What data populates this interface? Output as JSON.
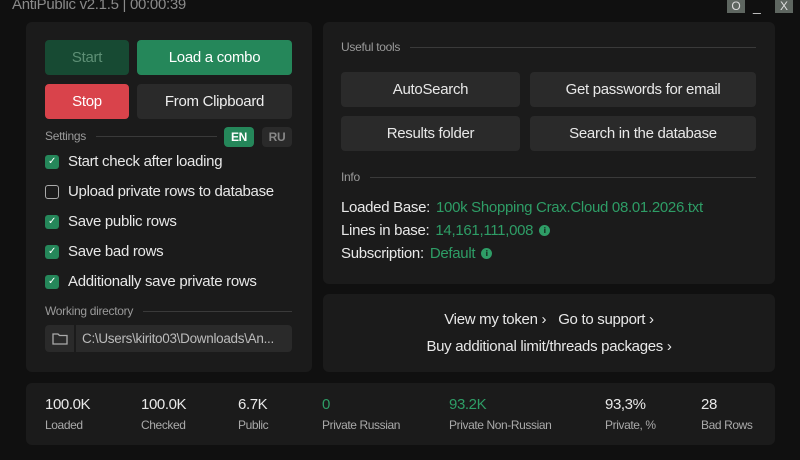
{
  "window": {
    "title": "AntiPublic v2.1.5 | 00:00:39",
    "camera": "O",
    "minimize": "_",
    "close": "X"
  },
  "left": {
    "start": "Start",
    "load_combo": "Load a combo",
    "stop": "Stop",
    "from_clipboard": "From Clipboard",
    "settings_label": "Settings",
    "lang_en": "EN",
    "lang_ru": "RU",
    "settings": [
      {
        "label": "Start check after loading",
        "checked": true
      },
      {
        "label": "Upload private rows to database",
        "checked": false
      },
      {
        "label": "Save public rows",
        "checked": true
      },
      {
        "label": "Save bad rows",
        "checked": true
      },
      {
        "label": "Additionally save private rows",
        "checked": true
      }
    ],
    "working_dir_label": "Working directory",
    "working_dir": "C:\\Users\\kirito03\\Downloads\\An..."
  },
  "tools": {
    "label": "Useful tools",
    "autosearch": "AutoSearch",
    "get_passwords": "Get passwords for email",
    "results_folder": "Results folder",
    "search_db": "Search in the database"
  },
  "info": {
    "label": "Info",
    "loaded_base_label": "Loaded Base:",
    "loaded_base": "100k Shopping Crax.Cloud 08.01.2026.txt",
    "lines_label": "Lines in base:",
    "lines": "14,161,111,008",
    "sub_label": "Subscription:",
    "sub": "Default",
    "info_glyph": "i"
  },
  "links": {
    "token": "View my token ›",
    "support": "Go to support ›",
    "buy": "Buy additional limit/threads packages ›"
  },
  "stats": [
    {
      "value": "100.0K",
      "label": "Loaded"
    },
    {
      "value": "100.0K",
      "label": "Checked"
    },
    {
      "value": "6.7K",
      "label": "Public"
    },
    {
      "value": "0",
      "label": "Private Russian",
      "green": true
    },
    {
      "value": "93.2K",
      "label": "Private Non-Russian",
      "green": true
    },
    {
      "value": "93,3%",
      "label": "Private, %"
    },
    {
      "value": "28",
      "label": "Bad Rows"
    }
  ],
  "colors": {
    "accent": "#25875a",
    "stop": "#d9434b",
    "bg": "#101010",
    "panel": "#1b1b1b"
  }
}
